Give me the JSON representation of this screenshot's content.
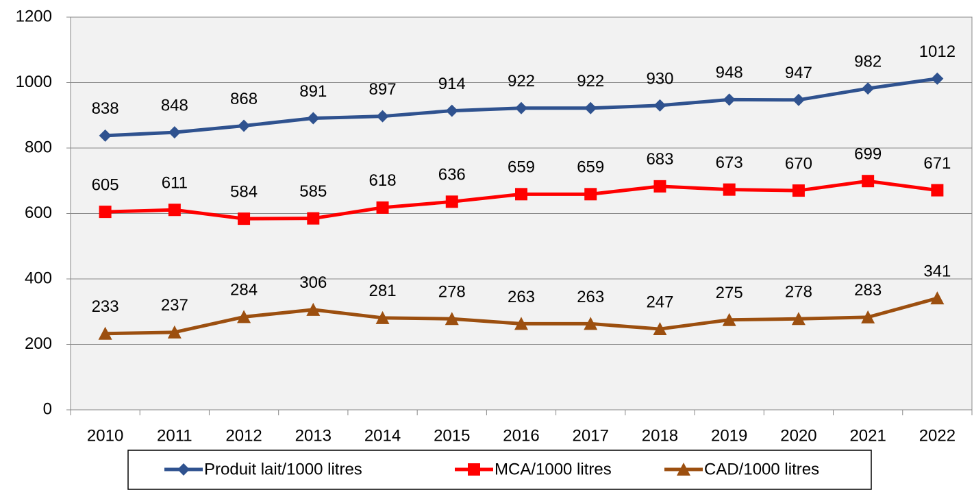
{
  "chart_data": {
    "type": "line",
    "categories": [
      "2010",
      "2011",
      "2012",
      "2013",
      "2014",
      "2015",
      "2016",
      "2017",
      "2018",
      "2019",
      "2020",
      "2021",
      "2022"
    ],
    "series": [
      {
        "name": "Produit lait/1000 litres",
        "color": "#2f528f",
        "marker": "diamond",
        "values": [
          838,
          848,
          868,
          891,
          897,
          914,
          922,
          922,
          930,
          948,
          947,
          982,
          1012
        ]
      },
      {
        "name": "MCA/1000 litres",
        "color": "#ff0000",
        "marker": "square",
        "values": [
          605,
          611,
          584,
          585,
          618,
          636,
          659,
          659,
          683,
          673,
          670,
          699,
          671
        ]
      },
      {
        "name": "CAD/1000 litres",
        "color": "#9c4f0f",
        "marker": "triangle",
        "values": [
          233,
          237,
          284,
          306,
          281,
          278,
          263,
          263,
          247,
          275,
          278,
          283,
          341
        ]
      }
    ],
    "ylim": [
      0,
      1200
    ],
    "yticks": [
      0,
      200,
      400,
      600,
      800,
      1000,
      1200
    ],
    "grid": true,
    "legend": "bottom",
    "data_labels": true
  }
}
